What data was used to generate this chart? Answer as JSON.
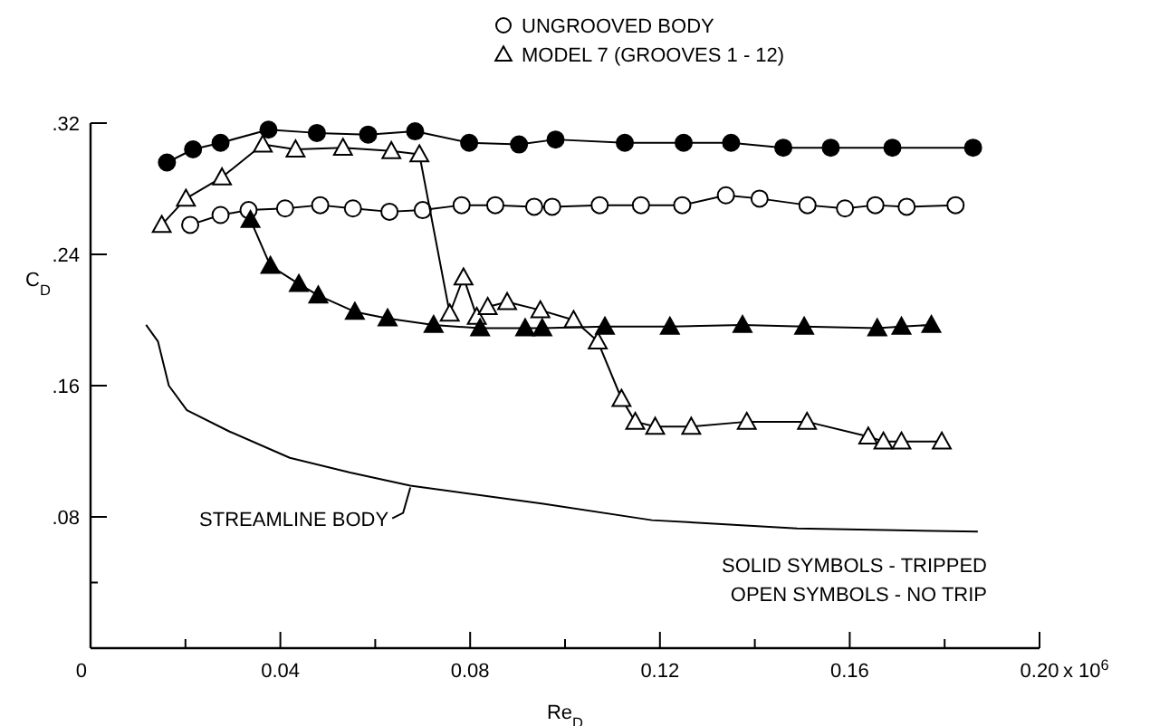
{
  "chart_data": {
    "type": "line",
    "xlabel": "Re$_{D}$",
    "ylabel": "C$_{D}$",
    "xlim": [
      0,
      0.2
    ],
    "ylim": [
      0,
      0.32
    ],
    "xticks": [
      {
        "value": 0,
        "label": "0"
      },
      {
        "value": 0.02,
        "label": null
      },
      {
        "value": 0.04,
        "label": "0.04"
      },
      {
        "value": 0.06,
        "label": null
      },
      {
        "value": 0.08,
        "label": "0.08"
      },
      {
        "value": 0.1,
        "label": null
      },
      {
        "value": 0.12,
        "label": "0.12"
      },
      {
        "value": 0.14,
        "label": null
      },
      {
        "value": 0.16,
        "label": "0.16"
      },
      {
        "value": 0.18,
        "label": null
      },
      {
        "value": 0.2,
        "label": "0.20"
      }
    ],
    "yticks": [
      {
        "value": 0.04,
        "label": null
      },
      {
        "value": 0.08,
        "label": ".08"
      },
      {
        "value": 0.16,
        "label": ".16"
      },
      {
        "value": 0.24,
        "label": ".24"
      },
      {
        "value": 0.32,
        "label": ".32"
      }
    ],
    "grid": false,
    "legend": "top",
    "line_style": "solid",
    "series": [
      {
        "color": "#000000",
        "marker": "circle",
        "x": [
          0.0161,
          0.0216,
          0.0274,
          0.0375,
          0.0477,
          0.0585,
          0.0684,
          0.0798,
          0.0903,
          0.098,
          0.1126,
          0.125,
          0.135,
          0.146,
          0.156,
          0.169,
          0.186
        ],
        "values": [
          0.296,
          0.304,
          0.308,
          0.316,
          0.314,
          0.313,
          0.315,
          0.308,
          0.307,
          0.31,
          0.308,
          0.308,
          0.308,
          0.305,
          0.305,
          0.305,
          0.305
        ]
      },
      {
        "name": "UNGROOVED BODY",
        "color": "#000000",
        "marker": "circle",
        "x": [
          0.021,
          0.0274,
          0.0333,
          0.041,
          0.0484,
          0.0553,
          0.063,
          0.07,
          0.0782,
          0.0853,
          0.0935,
          0.0973,
          0.1073,
          0.116,
          0.1247,
          0.1339,
          0.141,
          0.1511,
          0.159,
          0.1654,
          0.172,
          0.1823
        ],
        "values": [
          0.258,
          0.264,
          0.267,
          0.268,
          0.27,
          0.268,
          0.266,
          0.267,
          0.27,
          0.27,
          0.269,
          0.269,
          0.27,
          0.27,
          0.27,
          0.276,
          0.274,
          0.27,
          0.268,
          0.27,
          0.269,
          0.27
        ]
      },
      {
        "name": "MODEL 7 (GROOVES 1 - 12)",
        "color": "#000000",
        "marker": "triangle",
        "x": [
          0.015,
          0.0201,
          0.0277,
          0.0363,
          0.0432,
          0.0532,
          0.0634,
          0.0693,
          0.0757,
          0.0786,
          0.0814,
          0.0837,
          0.0878,
          0.0948,
          0.1018,
          0.1069,
          0.1119,
          0.1148,
          0.119,
          0.1266,
          0.1383,
          0.151,
          0.1639,
          0.1671,
          0.1709,
          0.1794
        ],
        "values": [
          0.258,
          0.274,
          0.287,
          0.307,
          0.304,
          0.305,
          0.303,
          0.301,
          0.204,
          0.226,
          0.202,
          0.208,
          0.211,
          0.206,
          0.2,
          0.187,
          0.152,
          0.138,
          0.135,
          0.135,
          0.138,
          0.138,
          0.129,
          0.126,
          0.126,
          0.126
        ]
      },
      {
        "color": "#000000",
        "marker": "triangle",
        "x": [
          0.0337,
          0.0379,
          0.0439,
          0.048,
          0.0557,
          0.0626,
          0.0723,
          0.0821,
          0.0916,
          0.0952,
          0.1084,
          0.1221,
          0.1374,
          0.1504,
          0.1658,
          0.1709,
          0.1772
        ],
        "values": [
          0.261,
          0.233,
          0.222,
          0.215,
          0.205,
          0.201,
          0.197,
          0.195,
          0.195,
          0.195,
          0.196,
          0.196,
          0.197,
          0.196,
          0.195,
          0.196,
          0.197
        ]
      },
      {
        "color": "#000000",
        "marker": "none",
        "x": [
          0.0117,
          0.0142,
          0.0165,
          0.0203,
          0.0293,
          0.042,
          0.0547,
          0.0674,
          0.0954,
          0.1183,
          0.1489,
          0.187
        ],
        "values": [
          0.197,
          0.187,
          0.16,
          0.145,
          0.132,
          0.116,
          0.107,
          0.099,
          0.088,
          0.078,
          0.073,
          0.071
        ]
      }
    ],
    "annotations": [
      {
        "text": "STREAMLINE BODY",
        "x": 0.0674,
        "y": 0.099
      },
      "SOLID SYMBOLS - TRIPPED",
      "OPEN SYMBOLS - NO TRIP",
      "x 10$^{6}$"
    ]
  }
}
